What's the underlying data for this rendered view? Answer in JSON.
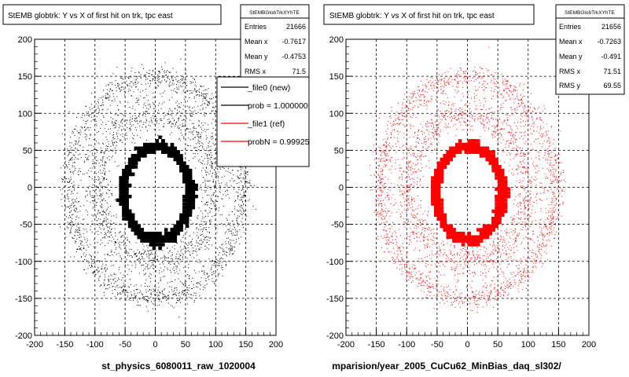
{
  "chart_data": [
    {
      "type": "scatter",
      "title": "StEMB globtrk: Y vs X of first hit on trk, tpc east",
      "xlabel": "st_physics_6080011_raw_1020004",
      "ylabel": "",
      "xlim": [
        -200,
        200
      ],
      "ylim": [
        -200,
        200
      ],
      "xticks": [
        "-200",
        "-150",
        "-100",
        "-50",
        "0",
        "50",
        "100",
        "150",
        "200"
      ],
      "yticks": [
        "-200",
        "-150",
        "-100",
        "-50",
        "0",
        "50",
        "100",
        "150",
        "200"
      ],
      "grid": true,
      "marker_color": "#000000",
      "stats": {
        "name": "StEMBGlobTrkXYhTE",
        "rows": [
          {
            "label": "Entries",
            "value": "21666"
          },
          {
            "label": "Mean x",
            "value": "-0.7617"
          },
          {
            "label": "Mean y",
            "value": "-0.4753"
          },
          {
            "label": "RMS x",
            "value": "71.5"
          }
        ]
      },
      "legend": {
        "placement": "right",
        "entries": [
          {
            "label": "_file0 (new)",
            "color": "#000000"
          },
          {
            "label": "prob = 1.000000",
            "color": "#000000"
          },
          {
            "label": "_file1 (ref)",
            "color": "#ff0000"
          },
          {
            "label": "probN = 0.99925",
            "color": "#ff0000"
          }
        ]
      },
      "description": {
        "outer_ring_radius": 145,
        "mid_ring_radius": 95,
        "inner_ring_radius_x": 55,
        "inner_ring_radius_y": 63,
        "inner_ring_center_y": -5
      }
    },
    {
      "type": "scatter",
      "title": "StEMB globtrk: Y vs X of first hit on trk, tpc east",
      "xlabel": "mparision/year_2005_CuCu62_MinBias_daq_sl302/",
      "ylabel": "",
      "xlim": [
        -200,
        200
      ],
      "ylim": [
        -200,
        200
      ],
      "xticks": [
        "-200",
        "-150",
        "-100",
        "-50",
        "0",
        "50",
        "100",
        "150",
        "200"
      ],
      "yticks": [
        "-200",
        "-150",
        "-100",
        "-50",
        "0",
        "50",
        "100",
        "150",
        "200"
      ],
      "grid": true,
      "marker_color": "#ff0000",
      "stats": {
        "name": "StEMBGlobTrkXYhTE",
        "rows": [
          {
            "label": "Entries",
            "value": "21656"
          },
          {
            "label": "Mean x",
            "value": "-0.7263"
          },
          {
            "label": "Mean y",
            "value": "-0.491"
          },
          {
            "label": "RMS x",
            "value": "71.51"
          },
          {
            "label": "RMS y",
            "value": "69.55"
          }
        ]
      },
      "description": {
        "outer_ring_radius": 145,
        "mid_ring_radius": 95,
        "inner_ring_radius_x": 55,
        "inner_ring_radius_y": 63,
        "inner_ring_center_y": -5
      }
    }
  ]
}
